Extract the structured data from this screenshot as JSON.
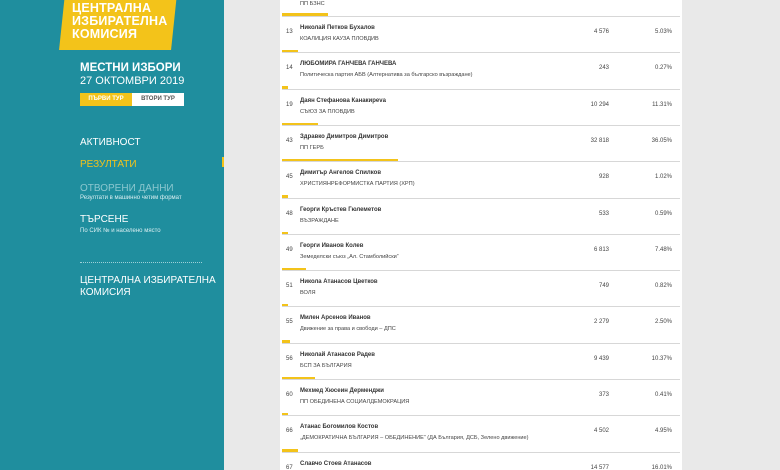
{
  "brand": {
    "logo_line1": "ЦЕНТРАЛНА",
    "logo_line2": "ИЗБИРАТЕЛНА",
    "logo_line3": "КОМИСИЯ",
    "accent_color": "#f3c31a",
    "sidebar_color": "#1f8e9e"
  },
  "election": {
    "title": "МЕСТНИ ИЗБОРИ",
    "date": "27 ОКТОМВРИ 2019",
    "round_tabs": [
      "ПЪРВИ ТУР",
      "ВТОРИ ТУР"
    ]
  },
  "nav": {
    "activity": "АКТИВНОСТ",
    "results": "РЕЗУЛТАТИ",
    "open_data": "ОТВОРЕНИ ДАННИ",
    "open_data_sub": "Резултати в машинно четим формат",
    "search": "ТЪРСЕНЕ",
    "search_sub": "По СИК № и населено място",
    "footer_line1": "ЦЕНТРАЛНА ИЗБИРАТЕЛНА",
    "footer_line2": "КОМИСИЯ"
  },
  "results": {
    "top_party": "ПП БЗНС",
    "rows": [
      {
        "num": "13",
        "candidate": "Николай Петков Бухалов",
        "party": "КОАЛИЦИЯ КАУЗА ПЛОВДИВ",
        "votes": "4 576",
        "pct": "5.03%",
        "share": 5.03
      },
      {
        "num": "14",
        "candidate": "ЛЮБОМИРА ГАНЧЕВА ГАНЧЕВА",
        "party": "Политическа партия АБВ (Алтернатива за българско възраждане)",
        "votes": "243",
        "pct": "0.27%",
        "share": 0.27
      },
      {
        "num": "19",
        "candidate": "Даян Стефанова Канакиреva",
        "party": "СЪЮЗ ЗА ПЛОВДИВ",
        "votes": "10 294",
        "pct": "11.31%",
        "share": 11.31
      },
      {
        "num": "43",
        "candidate": "Здравко Димитров Димитров",
        "party": "ПП ГЕРБ",
        "votes": "32 818",
        "pct": "36.05%",
        "share": 36.05
      },
      {
        "num": "45",
        "candidate": "Димитър Ангелов Спилков",
        "party": "ХРИСТИЯНРЕФОРМИСТКА ПАРТИЯ (ХРП)",
        "votes": "928",
        "pct": "1.02%",
        "share": 1.02
      },
      {
        "num": "48",
        "candidate": "Георги Кръстев Гюлеметов",
        "party": "ВЪЗРАЖДАНЕ",
        "votes": "533",
        "pct": "0.59%",
        "share": 0.59
      },
      {
        "num": "49",
        "candidate": "Георги Иванов Колев",
        "party": "Земеделски съюз „Ал. Стамболийски“",
        "votes": "6 813",
        "pct": "7.48%",
        "share": 7.48
      },
      {
        "num": "51",
        "candidate": "Никола Атанасов Цветков",
        "party": "ВОЛЯ",
        "votes": "749",
        "pct": "0.82%",
        "share": 0.82
      },
      {
        "num": "55",
        "candidate": "Милен Арсенов Иванов",
        "party": "Движение за права и свободи – ДПС",
        "votes": "2 279",
        "pct": "2.50%",
        "share": 2.5
      },
      {
        "num": "56",
        "candidate": "Николай Атанасов Радев",
        "party": "БСП ЗА БЪЛГАРИЯ",
        "votes": "9 439",
        "pct": "10.37%",
        "share": 10.37
      },
      {
        "num": "60",
        "candidate": "Мехмед Хюсеин Дерменджи",
        "party": "ПП ОБЕДИНЕНА СОЦИАЛДЕМОКРАЦИЯ",
        "votes": "373",
        "pct": "0.41%",
        "share": 0.41
      },
      {
        "num": "66",
        "candidate": "Атанас Богомилов Костов",
        "party": "„ДЕМОКРАТИЧНА БЪЛГАРИЯ – ОБЕДИНЕНИЕ“ (ДА България, ДСБ, Зелено движение)",
        "votes": "4 502",
        "pct": "4.95%",
        "share": 4.95
      },
      {
        "num": "67",
        "candidate": "Славчо Стоев Атанасов",
        "party": "",
        "votes": "14 577",
        "pct": "16.01%",
        "share": 16.01
      }
    ]
  }
}
